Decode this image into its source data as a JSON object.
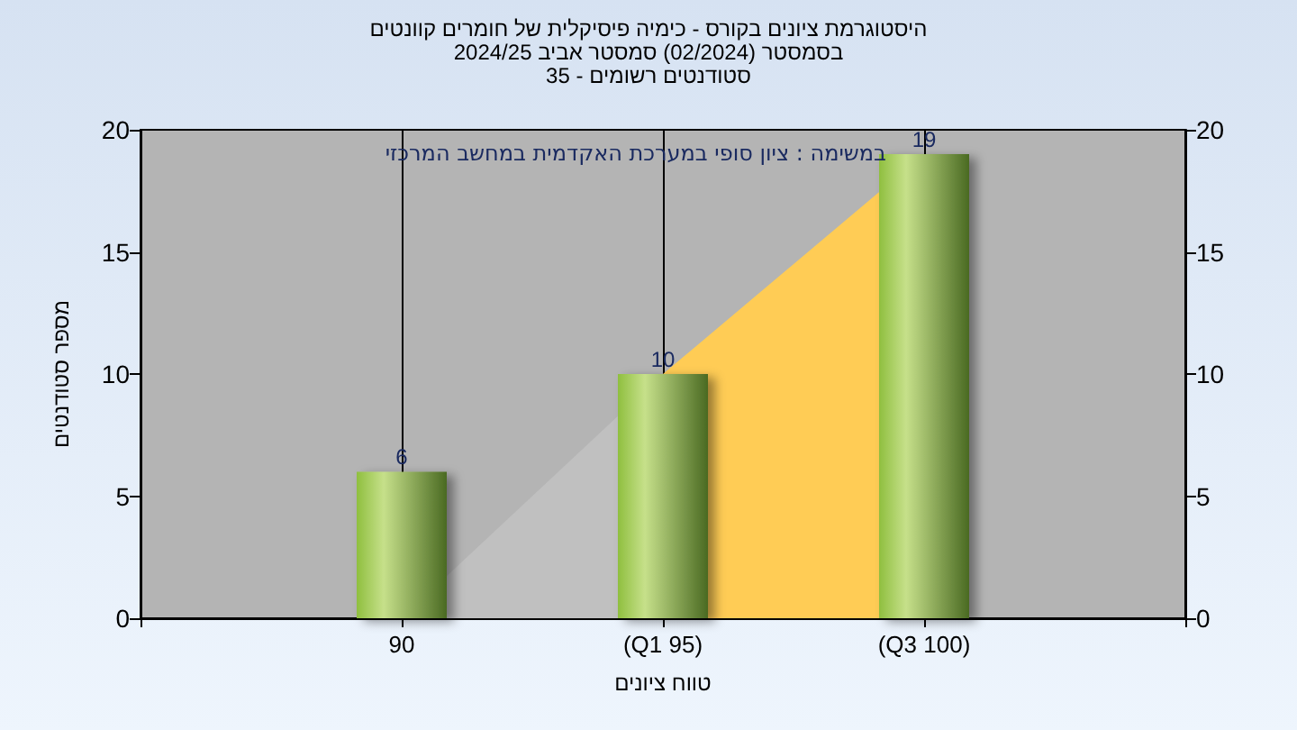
{
  "chart_data": {
    "type": "bar",
    "title": "היסטוגרמת ציונים בקורס - כימיה פיסיקלית של חומרים קוונטים",
    "subtitle": [
      "בסמסטר (02/2024) סמסטר אביב 2024/25",
      "סטודנטים רשומים - 35"
    ],
    "xlabel": "טווח ציונים",
    "ylabel": "מספר סטודנטים",
    "annotations": [
      "במשימה : ציון סופי במערכת האקדמית במחשב המרכזי"
    ],
    "categories": [
      null,
      "90",
      "(Q1 95)",
      "(Q3 100)",
      null
    ],
    "series": [
      {
        "type": "area",
        "color": "#c0c0c0",
        "values": [
          null,
          0,
          10,
          null,
          null
        ]
      },
      {
        "type": "area",
        "color": "#ffcc55",
        "values": [
          null,
          null,
          10,
          19,
          null
        ]
      },
      {
        "color": "#8fbf3f",
        "values": [
          null,
          6,
          10,
          19,
          null
        ],
        "value_labels": [
          null,
          "6",
          "10",
          "19",
          null
        ]
      }
    ],
    "ylim": [
      0,
      20
    ],
    "yticks": [
      0,
      5,
      10,
      15,
      20
    ],
    "y2lim": [
      0,
      20
    ],
    "y2ticks": [
      0,
      5,
      10,
      15,
      20
    ],
    "grid": "x"
  }
}
